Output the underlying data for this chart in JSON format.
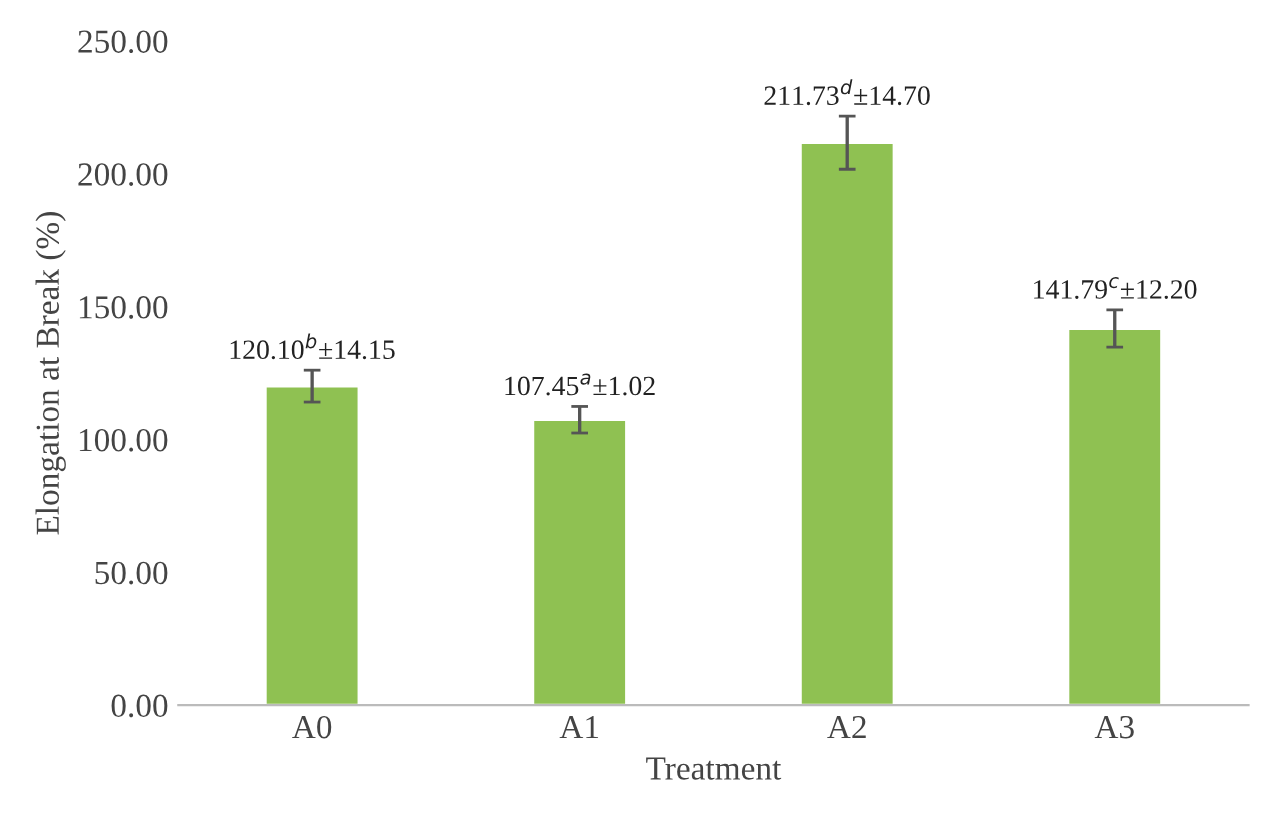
{
  "chart_data": {
    "type": "bar",
    "xlabel": "Treatment",
    "ylabel": "Elongation at Break (%)",
    "categories": [
      "A0",
      "A1",
      "A2",
      "A3"
    ],
    "values": [
      120.1,
      107.45,
      211.73,
      141.79
    ],
    "errors": [
      6,
      5,
      10,
      7
    ],
    "value_labels": [
      "120.10$^{b}$±14.15",
      "107.45$^{a}$±1.02",
      "211.73$^{d}$±14.70",
      "141.79$^{c}$±12.20"
    ],
    "color": "#8fc152",
    "ylim": [
      0,
      250
    ],
    "yticks": [
      {
        "value": 0,
        "label": "0.00"
      },
      {
        "value": 50,
        "label": "50.00"
      },
      {
        "value": 100,
        "label": "100.00"
      },
      {
        "value": 150,
        "label": "150.00"
      },
      {
        "value": 200,
        "label": "200.00"
      },
      {
        "value": 250,
        "label": "250.00"
      }
    ],
    "grid": false,
    "legend": false
  }
}
